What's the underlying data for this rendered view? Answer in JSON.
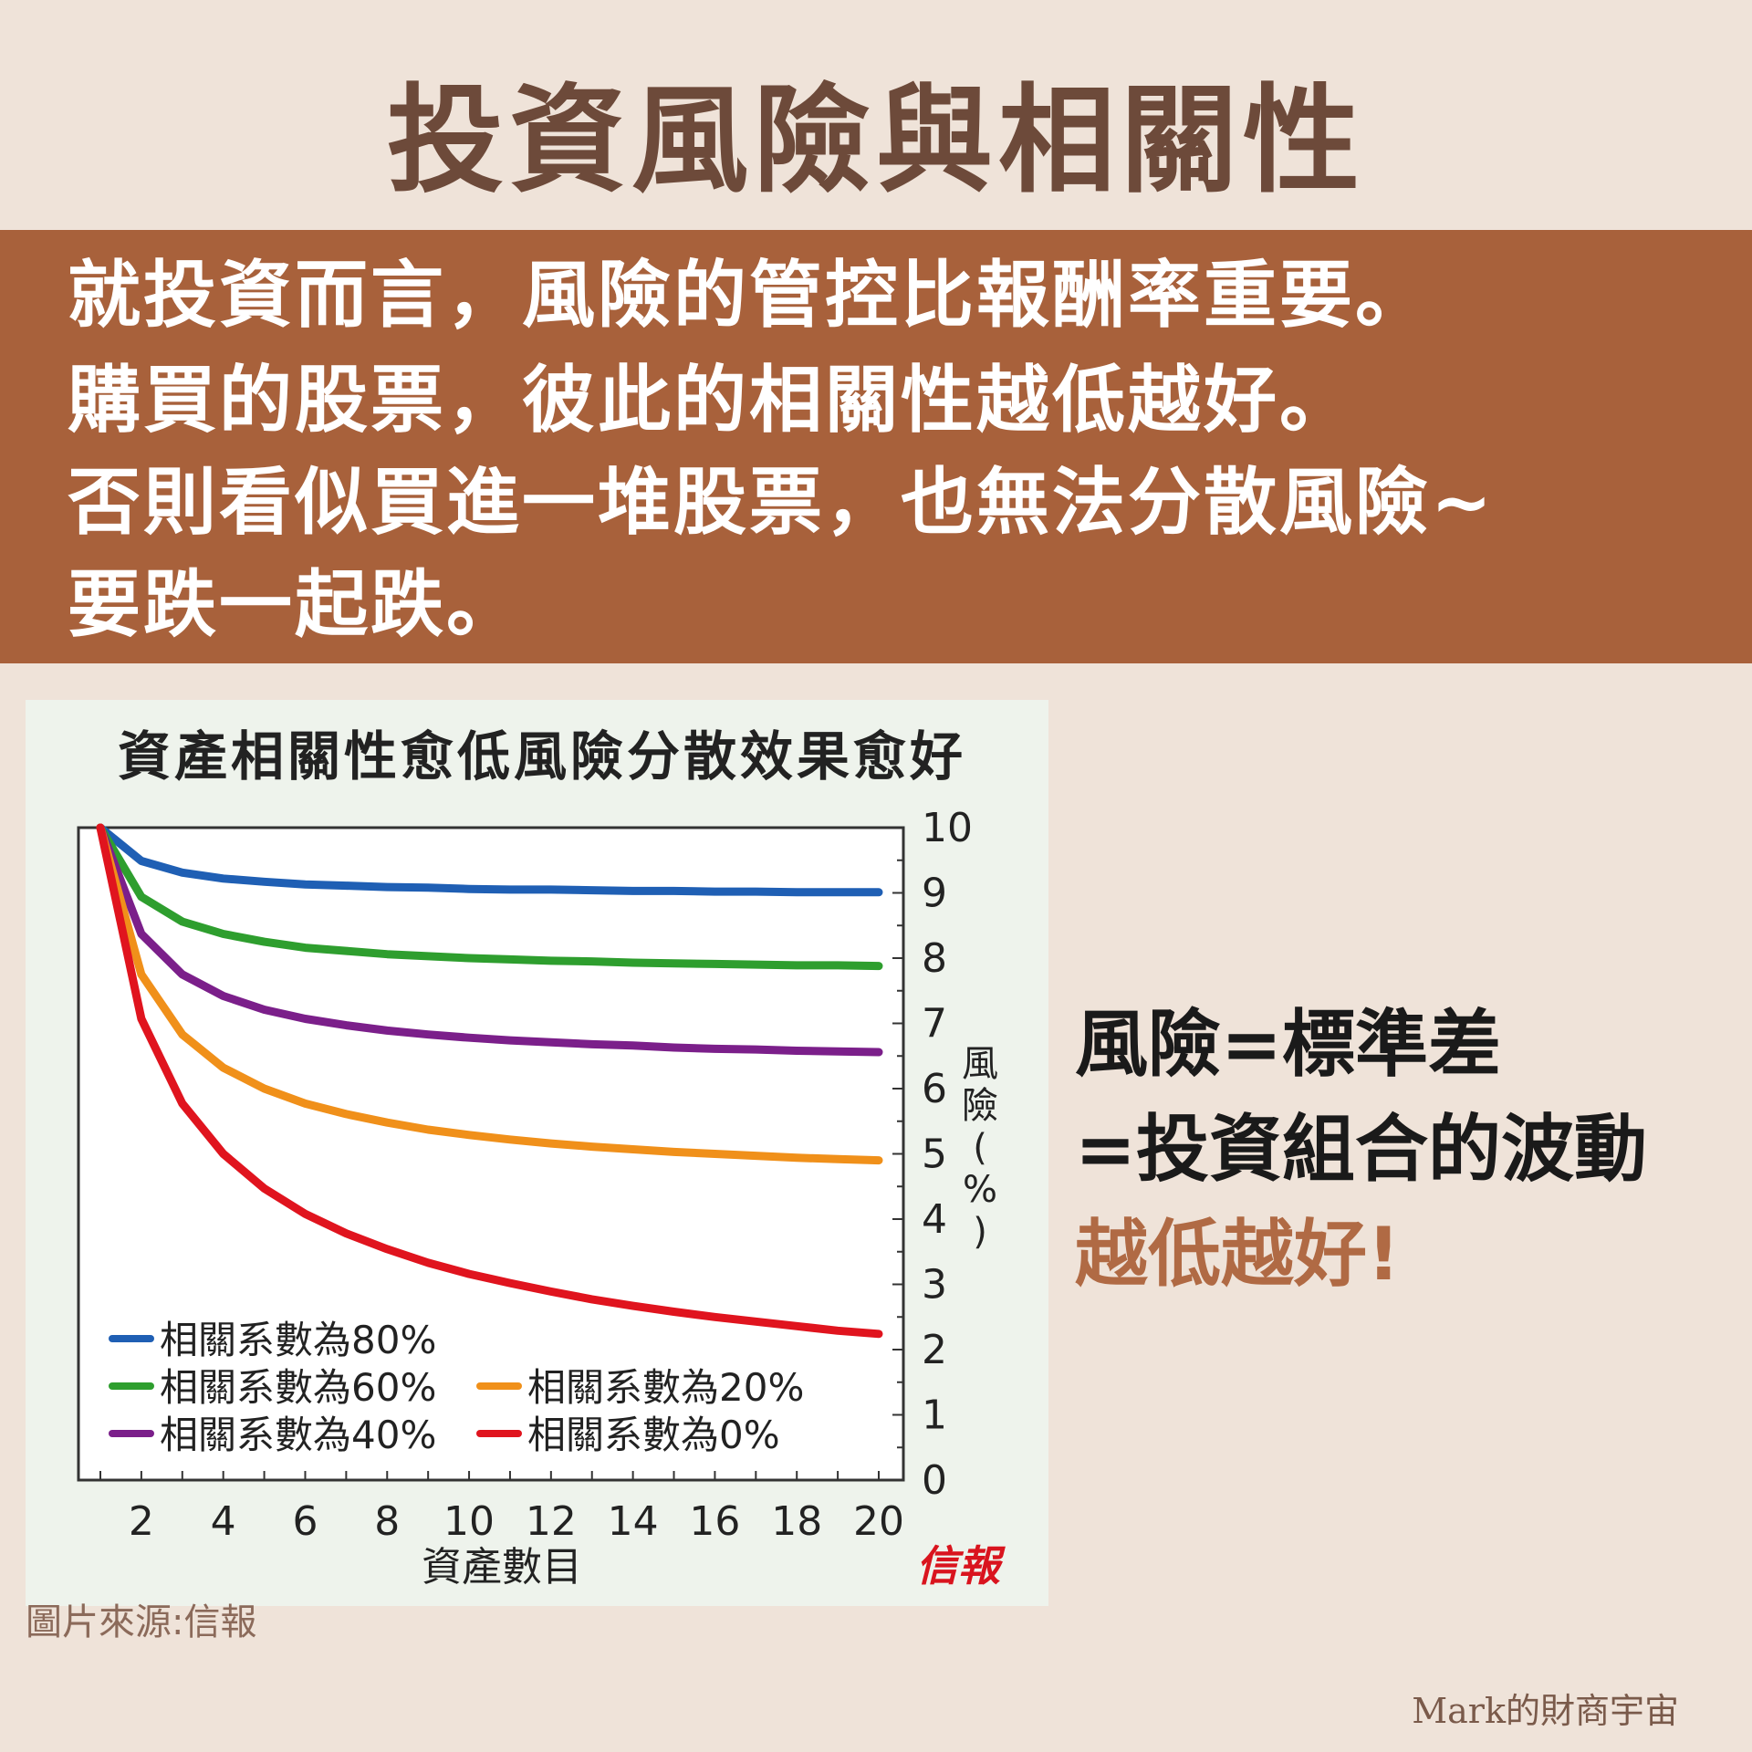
{
  "title": "投資風險與相關性",
  "banner": {
    "lines": [
      "就投資而言，風險的管控比報酬率重要。",
      "購買的股票，彼此的相關性越低越好。",
      "否則看似買進一堆股票，也無法分散風險~",
      "要跌一起跌。"
    ]
  },
  "side": {
    "line1": "風險=標準差",
    "line2": "=投資組合的波動",
    "line3": "越低越好!"
  },
  "source_note": "圖片來源:信報",
  "brand": "Mark的財商宇宙",
  "chart_data": {
    "type": "line",
    "title": "資產相關性愈低風險分散效果愈好",
    "xlabel": "資產數目",
    "ylabel": "風險(%)",
    "xlim": [
      1,
      20
    ],
    "ylim": [
      0,
      10
    ],
    "x_ticks": [
      2,
      4,
      6,
      8,
      10,
      12,
      14,
      16,
      18,
      20
    ],
    "y_ticks": [
      0,
      1,
      2,
      3,
      4,
      5,
      6,
      7,
      8,
      9,
      10
    ],
    "grid": false,
    "y_axis_side": "right",
    "legend_position": "bottom-left",
    "watermark": "信報",
    "x": [
      1,
      2,
      3,
      4,
      5,
      6,
      7,
      8,
      9,
      10,
      11,
      12,
      13,
      14,
      15,
      16,
      17,
      18,
      19,
      20
    ],
    "series": [
      {
        "name": "相關系數為80%",
        "color": "#1f5fb4",
        "values": [
          10,
          9.49,
          9.31,
          9.22,
          9.17,
          9.13,
          9.11,
          9.09,
          9.08,
          9.06,
          9.05,
          9.05,
          9.04,
          9.03,
          9.03,
          9.02,
          9.02,
          9.01,
          9.01,
          9.01
        ]
      },
      {
        "name": "相關系數為60%",
        "color": "#2e9e2e",
        "values": [
          10,
          8.94,
          8.56,
          8.37,
          8.25,
          8.16,
          8.11,
          8.06,
          8.03,
          8.0,
          7.98,
          7.96,
          7.95,
          7.93,
          7.92,
          7.91,
          7.9,
          7.89,
          7.89,
          7.88
        ]
      },
      {
        "name": "相關系數為40%",
        "color": "#7b1f8a",
        "values": [
          10,
          8.37,
          7.75,
          7.42,
          7.21,
          7.07,
          6.97,
          6.89,
          6.83,
          6.78,
          6.74,
          6.71,
          6.68,
          6.66,
          6.63,
          6.61,
          6.6,
          6.58,
          6.57,
          6.56
        ]
      },
      {
        "name": "相關系數為20%",
        "color": "#f0901a",
        "values": [
          10,
          7.75,
          6.83,
          6.32,
          6.0,
          5.77,
          5.61,
          5.48,
          5.37,
          5.29,
          5.22,
          5.16,
          5.11,
          5.07,
          5.03,
          5.0,
          4.97,
          4.94,
          4.92,
          4.9
        ]
      },
      {
        "name": "相關系數為0%",
        "color": "#e0141e",
        "values": [
          10,
          7.07,
          5.77,
          5.0,
          4.47,
          4.08,
          3.78,
          3.54,
          3.33,
          3.16,
          3.02,
          2.89,
          2.77,
          2.67,
          2.58,
          2.5,
          2.43,
          2.36,
          2.29,
          2.24
        ]
      }
    ]
  }
}
